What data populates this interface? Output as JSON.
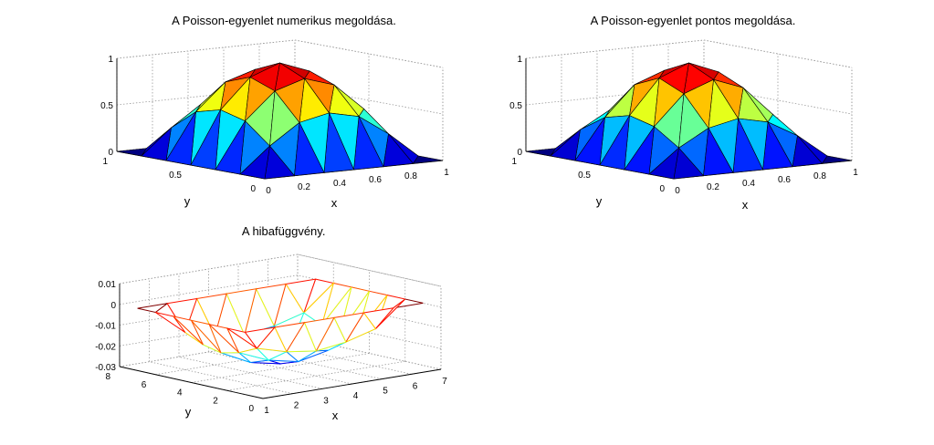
{
  "chart_data": [
    {
      "type": "surface",
      "title": "A Poisson-egyenlet numerikus megoldása.",
      "xlabel": "x",
      "ylabel": "y",
      "zlabel": "",
      "xlim": [
        0,
        1
      ],
      "ylim": [
        0,
        1
      ],
      "zlim": [
        0,
        1
      ],
      "x_ticks": [
        "0",
        "0.2",
        "0.4",
        "0.6",
        "0.8",
        "1"
      ],
      "y_ticks": [
        "0",
        "0.5",
        "1"
      ],
      "z_ticks": [
        "0",
        "0.5",
        "1"
      ],
      "grid": true,
      "shading": "faceted",
      "colormap": "jet",
      "x": [
        0,
        0.1667,
        0.3333,
        0.5,
        0.6667,
        0.8333,
        1
      ],
      "y": [
        0,
        0.1667,
        0.3333,
        0.5,
        0.6667,
        0.8333,
        1
      ],
      "z": [
        [
          0,
          0,
          0,
          0,
          0,
          0,
          0
        ],
        [
          0,
          0.27,
          0.49,
          0.56,
          0.49,
          0.27,
          0
        ],
        [
          0,
          0.49,
          0.78,
          0.88,
          0.78,
          0.49,
          0
        ],
        [
          0,
          0.56,
          0.88,
          1.0,
          0.88,
          0.56,
          0
        ],
        [
          0,
          0.49,
          0.78,
          0.88,
          0.78,
          0.49,
          0
        ],
        [
          0,
          0.27,
          0.49,
          0.56,
          0.49,
          0.27,
          0
        ],
        [
          0,
          0,
          0,
          0,
          0,
          0,
          0
        ]
      ]
    },
    {
      "type": "surface",
      "title": "A Poisson-egyenlet pontos megoldása.",
      "xlabel": "x",
      "ylabel": "y",
      "zlabel": "",
      "xlim": [
        0,
        1
      ],
      "ylim": [
        0,
        1
      ],
      "zlim": [
        0,
        1
      ],
      "x_ticks": [
        "0",
        "0.2",
        "0.4",
        "0.6",
        "0.8",
        "1"
      ],
      "y_ticks": [
        "0",
        "0.5",
        "1"
      ],
      "z_ticks": [
        "0",
        "0.5",
        "1"
      ],
      "grid": true,
      "shading": "faceted",
      "colormap": "jet",
      "x": [
        0,
        0.1667,
        0.3333,
        0.5,
        0.6667,
        0.8333,
        1
      ],
      "y": [
        0,
        0.1667,
        0.3333,
        0.5,
        0.6667,
        0.8333,
        1
      ],
      "z": [
        [
          0,
          0,
          0,
          0,
          0,
          0,
          0
        ],
        [
          0,
          0.25,
          0.43,
          0.5,
          0.43,
          0.25,
          0
        ],
        [
          0,
          0.43,
          0.75,
          0.87,
          0.75,
          0.43,
          0
        ],
        [
          0,
          0.5,
          0.87,
          1.0,
          0.87,
          0.5,
          0
        ],
        [
          0,
          0.43,
          0.75,
          0.87,
          0.75,
          0.43,
          0
        ],
        [
          0,
          0.25,
          0.43,
          0.5,
          0.43,
          0.25,
          0
        ],
        [
          0,
          0,
          0,
          0,
          0,
          0,
          0
        ]
      ]
    },
    {
      "type": "mesh",
      "title": "A hibafüggvény.",
      "xlabel": "x",
      "ylabel": "y",
      "zlabel": "",
      "xlim": [
        1,
        7
      ],
      "ylim": [
        0,
        8
      ],
      "zlim": [
        -0.03,
        0.01
      ],
      "x_ticks": [
        "1",
        "2",
        "3",
        "4",
        "5",
        "6",
        "7"
      ],
      "y_ticks": [
        "0",
        "2",
        "4",
        "6",
        "8"
      ],
      "z_ticks": [
        "-0.03",
        "-0.02",
        "-0.01",
        "0",
        "0.01"
      ],
      "grid": true,
      "shading": "mesh",
      "colormap": "jet",
      "x": [
        1,
        2,
        3,
        4,
        5,
        6,
        7
      ],
      "y": [
        1,
        2,
        3,
        4,
        5,
        6,
        7
      ],
      "z": [
        [
          0,
          0,
          0,
          0,
          0,
          0,
          0
        ],
        [
          0,
          -0.012,
          -0.016,
          -0.018,
          -0.016,
          -0.012,
          0
        ],
        [
          0,
          -0.016,
          -0.022,
          -0.025,
          -0.022,
          -0.016,
          0
        ],
        [
          0,
          -0.018,
          -0.025,
          -0.028,
          -0.025,
          -0.018,
          0
        ],
        [
          0,
          -0.016,
          -0.022,
          -0.025,
          -0.022,
          -0.016,
          0
        ],
        [
          0,
          -0.012,
          -0.016,
          -0.018,
          -0.016,
          -0.012,
          0
        ],
        [
          0,
          0,
          0,
          0,
          0,
          0,
          0
        ]
      ]
    }
  ]
}
